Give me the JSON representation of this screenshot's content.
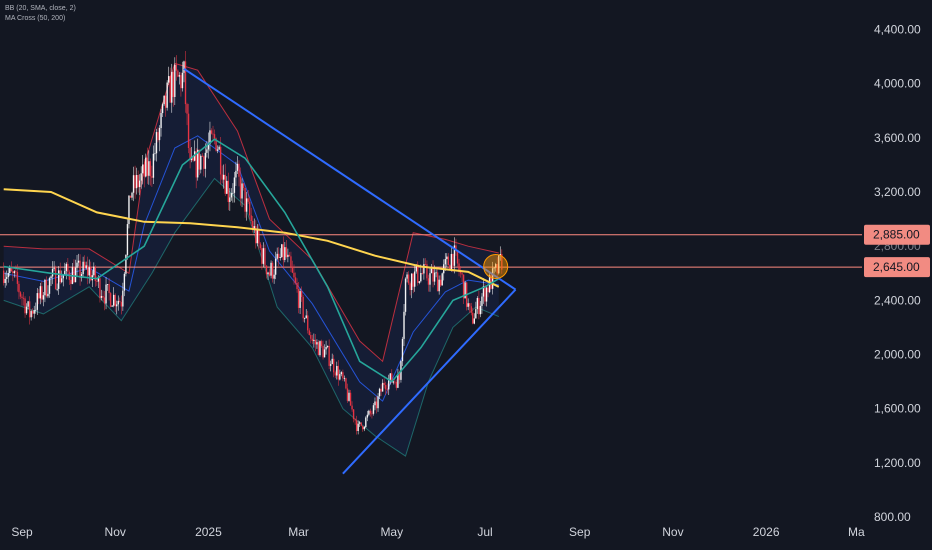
{
  "legend": {
    "bb": "BB (20, SMA, close, 2)",
    "ma": "MA Cross (50, 200)"
  },
  "colors": {
    "background": "#131722",
    "candle_up": "#ffffff",
    "candle_down": "#f23645",
    "bb_band": "#f23645",
    "bb_basis": "#2962ff",
    "bb_fill": "#2962ff",
    "ma50": "#26a69a",
    "ma200": "#ffd54f",
    "trendline": "#2f6bff",
    "level_line": "#ff8a80",
    "badge": "#f28b82",
    "marker": "#ff9800"
  },
  "chart_data": {
    "type": "line",
    "symbol_type": "candlestick",
    "ylim": [
      800,
      4600
    ],
    "y_ticks": [
      "4,400.00",
      "4,000.00",
      "3,600.00",
      "3,200.00",
      "2,400.00",
      "2,000.00",
      "1,600.00",
      "1,200.00",
      "800.00"
    ],
    "y_tick_values": [
      4400,
      4000,
      3600,
      3200,
      2400,
      2000,
      1600,
      1200,
      800
    ],
    "hidden_tick": "2,800.00",
    "x_range": [
      "2024-08-20",
      "2026-03-10"
    ],
    "x_ticks": [
      {
        "label": "Sep",
        "date": "2024-09-01"
      },
      {
        "label": "Nov",
        "date": "2024-11-01"
      },
      {
        "label": "2025",
        "date": "2025-01-01"
      },
      {
        "label": "Mar",
        "date": "2025-03-01"
      },
      {
        "label": "May",
        "date": "2025-05-01"
      },
      {
        "label": "Jul",
        "date": "2025-07-01"
      },
      {
        "label": "Sep",
        "date": "2025-09-01"
      },
      {
        "label": "Nov",
        "date": "2025-11-01"
      },
      {
        "label": "2026",
        "date": "2026-01-01"
      },
      {
        "label": "Ma",
        "date": "2026-03-01"
      }
    ],
    "price_series": [
      {
        "date": "2024-08-20",
        "close": 2620
      },
      {
        "date": "2024-08-27",
        "close": 2560
      },
      {
        "date": "2024-09-06",
        "close": 2300
      },
      {
        "date": "2024-09-20",
        "close": 2560
      },
      {
        "date": "2024-10-01",
        "close": 2600
      },
      {
        "date": "2024-10-15",
        "close": 2620
      },
      {
        "date": "2024-10-25",
        "close": 2450
      },
      {
        "date": "2024-11-05",
        "close": 2400
      },
      {
        "date": "2024-11-11",
        "close": 3200
      },
      {
        "date": "2024-11-25",
        "close": 3400
      },
      {
        "date": "2024-12-05",
        "close": 3900
      },
      {
        "date": "2024-12-08",
        "close": 4000
      },
      {
        "date": "2024-12-16",
        "close": 4050
      },
      {
        "date": "2024-12-20",
        "close": 3350
      },
      {
        "date": "2025-01-06",
        "close": 3600
      },
      {
        "date": "2025-01-14",
        "close": 3200
      },
      {
        "date": "2025-01-20",
        "close": 3300
      },
      {
        "date": "2025-02-03",
        "close": 2800
      },
      {
        "date": "2025-02-10",
        "close": 2600
      },
      {
        "date": "2025-02-20",
        "close": 2750
      },
      {
        "date": "2025-03-10",
        "close": 2100
      },
      {
        "date": "2025-03-20",
        "close": 2000
      },
      {
        "date": "2025-03-30",
        "close": 1800
      },
      {
        "date": "2025-04-09",
        "close": 1450
      },
      {
        "date": "2025-04-20",
        "close": 1600
      },
      {
        "date": "2025-04-26",
        "close": 1800
      },
      {
        "date": "2025-05-06",
        "close": 1820
      },
      {
        "date": "2025-05-10",
        "close": 2550
      },
      {
        "date": "2025-05-20",
        "close": 2600
      },
      {
        "date": "2025-06-01",
        "close": 2550
      },
      {
        "date": "2025-06-10",
        "close": 2750
      },
      {
        "date": "2025-06-16",
        "close": 2550
      },
      {
        "date": "2025-06-22",
        "close": 2250
      },
      {
        "date": "2025-06-30",
        "close": 2450
      },
      {
        "date": "2025-07-08",
        "close": 2600
      },
      {
        "date": "2025-07-12",
        "close": 2700
      }
    ],
    "series": [
      {
        "name": "MA200",
        "points": [
          {
            "date": "2024-08-20",
            "value": 3220
          },
          {
            "date": "2024-09-20",
            "value": 3200
          },
          {
            "date": "2024-10-20",
            "value": 3050
          },
          {
            "date": "2024-11-20",
            "value": 2980
          },
          {
            "date": "2024-12-20",
            "value": 2970
          },
          {
            "date": "2025-01-20",
            "value": 2940
          },
          {
            "date": "2025-02-20",
            "value": 2900
          },
          {
            "date": "2025-03-20",
            "value": 2840
          },
          {
            "date": "2025-04-20",
            "value": 2730
          },
          {
            "date": "2025-05-20",
            "value": 2650
          },
          {
            "date": "2025-06-20",
            "value": 2610
          },
          {
            "date": "2025-07-10",
            "value": 2500
          }
        ]
      },
      {
        "name": "MA50",
        "points": [
          {
            "date": "2024-08-20",
            "value": 2650
          },
          {
            "date": "2024-09-20",
            "value": 2600
          },
          {
            "date": "2024-10-20",
            "value": 2560
          },
          {
            "date": "2024-11-20",
            "value": 2800
          },
          {
            "date": "2024-12-15",
            "value": 3400
          },
          {
            "date": "2025-01-05",
            "value": 3590
          },
          {
            "date": "2025-01-25",
            "value": 3450
          },
          {
            "date": "2025-02-20",
            "value": 3050
          },
          {
            "date": "2025-03-20",
            "value": 2500
          },
          {
            "date": "2025-04-10",
            "value": 1950
          },
          {
            "date": "2025-05-01",
            "value": 1800
          },
          {
            "date": "2025-05-20",
            "value": 2050
          },
          {
            "date": "2025-06-10",
            "value": 2400
          },
          {
            "date": "2025-07-01",
            "value": 2500
          },
          {
            "date": "2025-07-10",
            "value": 2560
          }
        ]
      },
      {
        "name": "BB upper",
        "points": [
          {
            "date": "2024-08-20",
            "value": 2800
          },
          {
            "date": "2024-09-15",
            "value": 2780
          },
          {
            "date": "2024-10-15",
            "value": 2780
          },
          {
            "date": "2024-11-10",
            "value": 2600
          },
          {
            "date": "2024-11-20",
            "value": 3400
          },
          {
            "date": "2024-12-10",
            "value": 4150
          },
          {
            "date": "2024-12-25",
            "value": 4100
          },
          {
            "date": "2025-01-20",
            "value": 3650
          },
          {
            "date": "2025-02-10",
            "value": 3000
          },
          {
            "date": "2025-03-10",
            "value": 2700
          },
          {
            "date": "2025-04-10",
            "value": 2100
          },
          {
            "date": "2025-04-25",
            "value": 1950
          },
          {
            "date": "2025-05-15",
            "value": 2900
          },
          {
            "date": "2025-06-05",
            "value": 2850
          },
          {
            "date": "2025-06-20",
            "value": 2800
          },
          {
            "date": "2025-07-10",
            "value": 2750
          }
        ]
      },
      {
        "name": "BB lower",
        "points": [
          {
            "date": "2024-08-20",
            "value": 2400
          },
          {
            "date": "2024-09-15",
            "value": 2300
          },
          {
            "date": "2024-10-15",
            "value": 2500
          },
          {
            "date": "2024-11-05",
            "value": 2250
          },
          {
            "date": "2024-11-25",
            "value": 2600
          },
          {
            "date": "2024-12-10",
            "value": 2900
          },
          {
            "date": "2025-01-05",
            "value": 3300
          },
          {
            "date": "2025-01-25",
            "value": 3100
          },
          {
            "date": "2025-02-15",
            "value": 2350
          },
          {
            "date": "2025-03-10",
            "value": 2050
          },
          {
            "date": "2025-03-30",
            "value": 1600
          },
          {
            "date": "2025-04-20",
            "value": 1400
          },
          {
            "date": "2025-05-10",
            "value": 1250
          },
          {
            "date": "2025-05-25",
            "value": 1800
          },
          {
            "date": "2025-06-10",
            "value": 2200
          },
          {
            "date": "2025-06-25",
            "value": 2350
          },
          {
            "date": "2025-07-10",
            "value": 2280
          }
        ]
      }
    ],
    "levels": [
      {
        "value": 2885,
        "label": "2,885.00"
      },
      {
        "value": 2645,
        "label": "2,645.00"
      }
    ],
    "trendlines": [
      {
        "from": {
          "date": "2024-12-16",
          "value": 4110
        },
        "to": {
          "date": "2025-07-21",
          "value": 2480
        }
      },
      {
        "from": {
          "date": "2025-03-30",
          "value": 1120
        },
        "to": {
          "date": "2025-07-21",
          "value": 2480
        }
      }
    ],
    "marker": {
      "date": "2025-07-08",
      "value": 2650
    },
    "grid": false
  }
}
